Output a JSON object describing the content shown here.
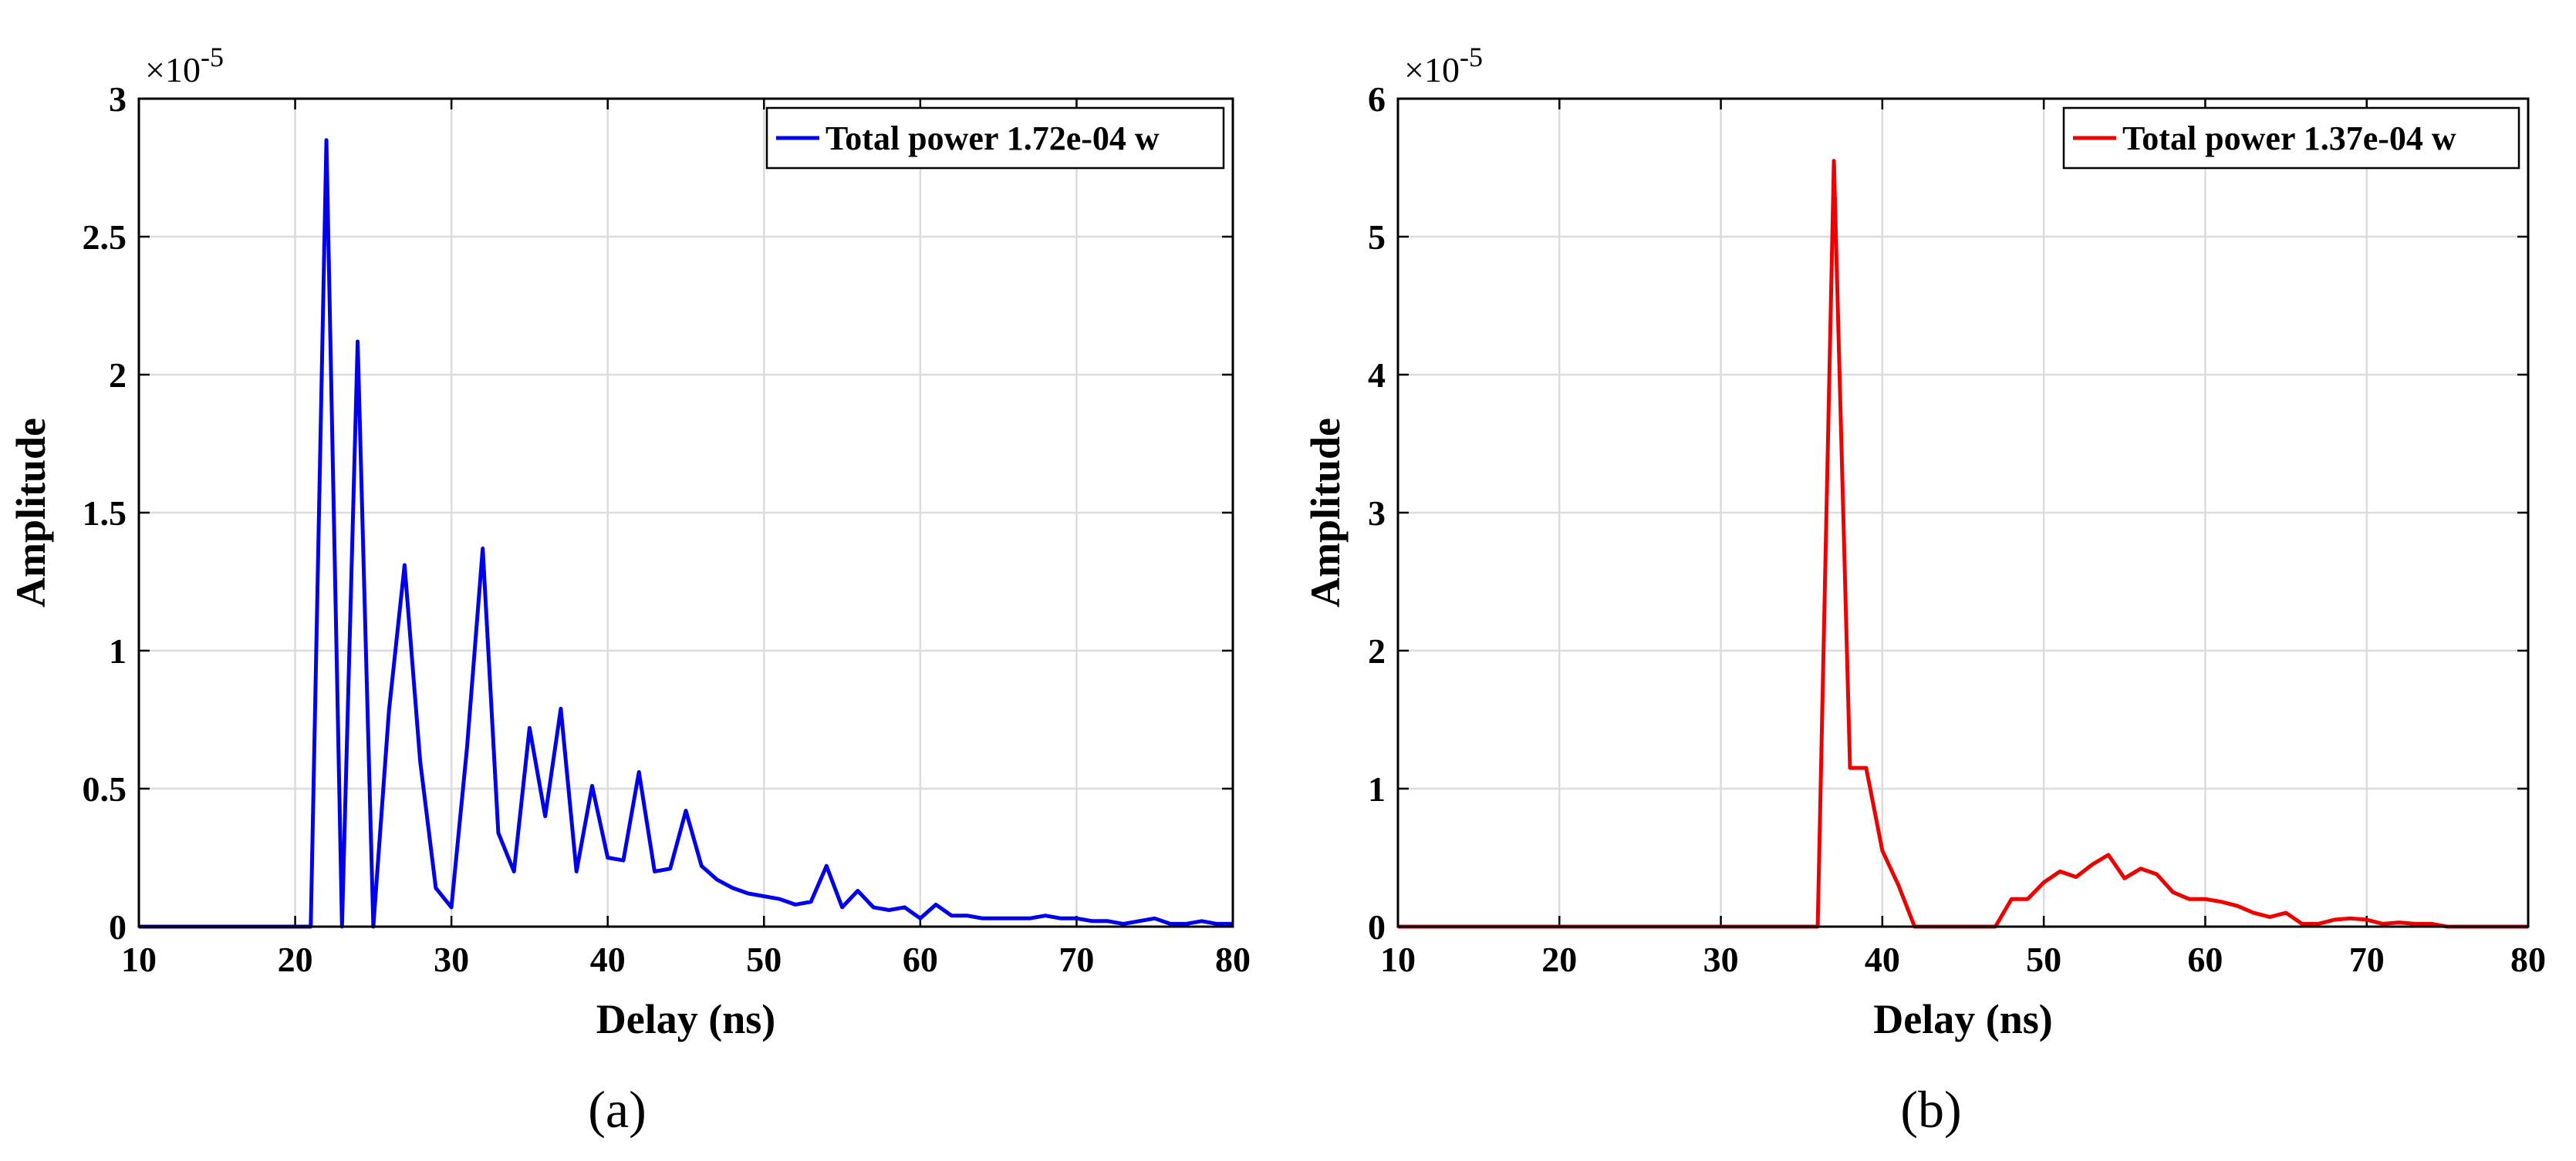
{
  "chart_data": [
    {
      "type": "line",
      "panel_label": "(a)",
      "xlabel": "Delay (ns)",
      "ylabel": "Amplitude",
      "y_exponent_base": "×10",
      "y_exponent_power": "-5",
      "xlim": [
        10,
        80
      ],
      "ylim": [
        0,
        3
      ],
      "xticks": [
        10,
        20,
        30,
        40,
        50,
        60,
        70,
        80
      ],
      "xtick_labels": [
        "10",
        "20",
        "30",
        "40",
        "50",
        "60",
        "70",
        "80"
      ],
      "yticks": [
        0,
        0.5,
        1,
        1.5,
        2,
        2.5,
        3
      ],
      "ytick_labels": [
        "0",
        "0.5",
        "1",
        "1.5",
        "2",
        "2.5",
        "3"
      ],
      "grid": true,
      "legend_position": "top-right",
      "series": [
        {
          "name": "Total power 1.72e-04 w",
          "color": "#0000ee",
          "x": [
            10,
            11,
            12,
            13,
            14,
            15,
            16,
            17,
            18,
            19,
            20,
            21,
            22,
            23,
            24,
            25,
            26,
            27,
            28,
            29,
            30,
            31,
            32,
            33,
            34,
            35,
            36,
            37,
            38,
            39,
            40,
            41,
            42,
            43,
            44,
            45,
            46,
            47,
            48,
            49,
            50,
            51,
            52,
            53,
            54,
            55,
            56,
            57,
            58,
            59,
            60,
            61,
            62,
            63,
            64,
            65,
            66,
            67,
            68,
            69,
            70,
            71,
            72,
            73,
            74,
            75,
            76,
            77,
            78,
            79,
            80
          ],
          "y": [
            0,
            0,
            0,
            0,
            0,
            0,
            0,
            0,
            0,
            0,
            0,
            0,
            2.85,
            0,
            2.12,
            0,
            0.78,
            1.31,
            0.6,
            0.14,
            0.07,
            0.65,
            1.37,
            0.34,
            0.2,
            0.72,
            0.4,
            0.79,
            0.2,
            0.51,
            0.25,
            0.24,
            0.56,
            0.2,
            0.21,
            0.42,
            0.22,
            0.17,
            0.14,
            0.12,
            0.11,
            0.1,
            0.08,
            0.09,
            0.22,
            0.07,
            0.13,
            0.07,
            0.06,
            0.07,
            0.03,
            0.08,
            0.04,
            0.04,
            0.03,
            0.03,
            0.03,
            0.03,
            0.04,
            0.03,
            0.03,
            0.02,
            0.02,
            0.01,
            0.02,
            0.03,
            0.01,
            0.01,
            0.02,
            0.01,
            0.01
          ]
        }
      ]
    },
    {
      "type": "line",
      "panel_label": "(b)",
      "xlabel": "Delay (ns)",
      "ylabel": "Amplitude",
      "y_exponent_base": "×10",
      "y_exponent_power": "-5",
      "xlim": [
        10,
        80
      ],
      "ylim": [
        0,
        6
      ],
      "xticks": [
        10,
        20,
        30,
        40,
        50,
        60,
        70,
        80
      ],
      "xtick_labels": [
        "10",
        "20",
        "30",
        "40",
        "50",
        "60",
        "70",
        "80"
      ],
      "yticks": [
        0,
        1,
        2,
        3,
        4,
        5,
        6
      ],
      "ytick_labels": [
        "0",
        "1",
        "2",
        "3",
        "4",
        "5",
        "6"
      ],
      "grid": true,
      "legend_position": "top-right",
      "series": [
        {
          "name": "Total power 1.37e-04 w",
          "color": "#ee0000",
          "x": [
            10,
            11,
            12,
            13,
            14,
            15,
            16,
            17,
            18,
            19,
            20,
            21,
            22,
            23,
            24,
            25,
            26,
            27,
            28,
            29,
            30,
            31,
            32,
            33,
            34,
            35,
            36,
            37,
            38,
            39,
            40,
            41,
            42,
            43,
            44,
            45,
            46,
            47,
            48,
            49,
            50,
            51,
            52,
            53,
            54,
            55,
            56,
            57,
            58,
            59,
            60,
            61,
            62,
            63,
            64,
            65,
            66,
            67,
            68,
            69,
            70,
            71,
            72,
            73,
            74,
            75,
            76,
            77,
            78,
            79,
            80
          ],
          "y": [
            0,
            0,
            0,
            0,
            0,
            0,
            0,
            0,
            0,
            0,
            0,
            0,
            0,
            0,
            0,
            0,
            0,
            0,
            0,
            0,
            0,
            0,
            0,
            0,
            0,
            0,
            0,
            5.55,
            1.15,
            1.15,
            0.55,
            0.3,
            0,
            0,
            0,
            0,
            0,
            0,
            0.2,
            0.2,
            0.32,
            0.4,
            0.36,
            0.45,
            0.52,
            0.35,
            0.42,
            0.38,
            0.25,
            0.2,
            0.2,
            0.18,
            0.15,
            0.1,
            0.07,
            0.1,
            0.02,
            0.02,
            0.05,
            0.06,
            0.05,
            0.02,
            0.03,
            0.02,
            0.02,
            0,
            0,
            0,
            0,
            0,
            0
          ]
        }
      ]
    }
  ]
}
